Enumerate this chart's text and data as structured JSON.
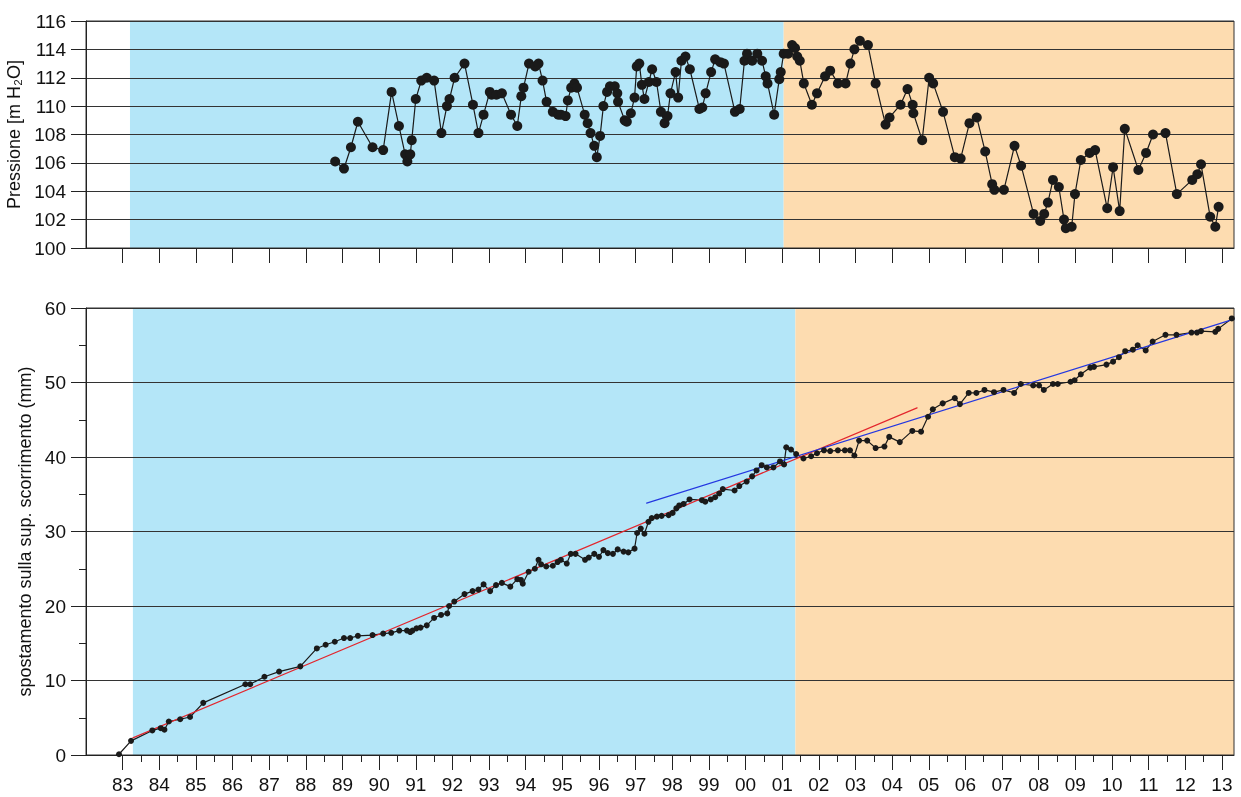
{
  "chart_data": [
    {
      "type": "line",
      "ylabel": "Pressione [m H₂O]",
      "x": [
        1988.8,
        1989.04,
        1989.23,
        1989.42,
        1989.82,
        1990.11,
        1990.34,
        1990.54,
        1990.71,
        1990.77,
        1990.85,
        1990.89,
        1991.0,
        1991.15,
        1991.3,
        1991.5,
        1991.7,
        1991.85,
        1991.92,
        1992.06,
        1992.33,
        1992.56,
        1992.71,
        1992.85,
        1993.02,
        1993.07,
        1993.2,
        1993.35,
        1993.6,
        1993.77,
        1993.88,
        1993.94,
        1994.09,
        1994.26,
        1994.35,
        1994.46,
        1994.57,
        1994.74,
        1994.89,
        1994.96,
        1995.09,
        1995.15,
        1995.24,
        1995.33,
        1995.4,
        1995.61,
        1995.69,
        1995.77,
        1995.87,
        1995.94,
        1996.03,
        1996.12,
        1996.22,
        1996.3,
        1996.43,
        1996.5,
        1996.52,
        1996.7,
        1996.76,
        1996.87,
        1996.97,
        1997.03,
        1997.1,
        1997.17,
        1997.24,
        1997.36,
        1997.45,
        1997.57,
        1997.69,
        1997.79,
        1997.87,
        1997.95,
        1998.09,
        1998.16,
        1998.25,
        1998.36,
        1998.48,
        1998.74,
        1998.82,
        1998.91,
        1999.06,
        1999.17,
        1999.31,
        1999.41,
        1999.71,
        1999.84,
        1999.97,
        2000.04,
        2000.18,
        2000.32,
        2000.45,
        2000.55,
        2000.6,
        2000.78,
        2000.92,
        2000.96,
        2001.04,
        2001.16,
        2001.27,
        2001.35,
        2001.41,
        2001.48,
        2001.59,
        2001.81,
        2001.95,
        2002.17,
        2002.31,
        2002.52,
        2002.73,
        2002.86,
        2002.97,
        2003.12,
        2003.34,
        2003.55,
        2003.82,
        2003.93,
        2004.23,
        2004.42,
        2004.56,
        2004.58,
        2004.82,
        2005.01,
        2005.12,
        2005.39,
        2005.71,
        2005.87,
        2006.11,
        2006.31,
        2006.54,
        2006.73,
        2006.79,
        2007.05,
        2007.34,
        2007.52,
        2007.86,
        2008.04,
        2008.15,
        2008.25,
        2008.39,
        2008.55,
        2008.69,
        2008.74,
        2008.9,
        2008.99,
        2009.15,
        2009.39,
        2009.54,
        2009.87,
        2010.03,
        2010.21,
        2010.35,
        2010.72,
        2010.93,
        2011.12,
        2011.46,
        2011.77,
        2012.19,
        2012.33,
        2012.43,
        2012.68,
        2012.82,
        2012.91
      ],
      "series": [
        {
          "color": "#1a1a1a",
          "values": [
            106.1,
            105.6,
            107.1,
            108.9,
            107.1,
            106.9,
            111.0,
            108.6,
            106.6,
            106.1,
            106.6,
            107.6,
            110.5,
            111.8,
            112.0,
            111.8,
            108.1,
            110.0,
            110.5,
            112.0,
            113.0,
            110.1,
            108.1,
            109.4,
            111.0,
            110.8,
            110.8,
            110.9,
            109.4,
            108.6,
            110.7,
            111.3,
            113.0,
            112.8,
            113.0,
            111.8,
            110.3,
            109.6,
            109.4,
            109.4,
            109.3,
            110.4,
            111.3,
            111.6,
            111.3,
            109.4,
            108.8,
            108.1,
            107.2,
            106.4,
            107.9,
            110.0,
            111.0,
            111.4,
            111.4,
            110.9,
            110.3,
            109.0,
            108.9,
            109.5,
            110.6,
            112.8,
            113.0,
            111.5,
            110.5,
            111.7,
            112.6,
            111.7,
            109.6,
            108.8,
            109.3,
            110.9,
            112.4,
            110.6,
            113.2,
            113.5,
            112.6,
            109.8,
            109.9,
            110.9,
            112.4,
            113.3,
            113.1,
            113.0,
            109.6,
            109.8,
            113.2,
            113.7,
            113.2,
            113.7,
            113.2,
            112.1,
            111.6,
            109.4,
            111.9,
            112.4,
            113.7,
            113.7,
            114.3,
            114.1,
            113.5,
            113.2,
            111.6,
            110.1,
            110.9,
            112.1,
            112.5,
            111.6,
            111.6,
            113.0,
            114.0,
            114.6,
            114.3,
            111.6,
            108.7,
            109.2,
            110.1,
            111.2,
            110.1,
            109.5,
            107.6,
            112.0,
            111.6,
            109.6,
            106.4,
            106.3,
            108.8,
            109.2,
            106.8,
            104.5,
            104.1,
            104.1,
            107.2,
            105.8,
            102.4,
            101.9,
            102.4,
            103.2,
            104.8,
            104.3,
            102.0,
            101.4,
            101.5,
            103.8,
            106.2,
            106.7,
            106.9,
            102.8,
            105.7,
            102.6,
            108.4,
            105.5,
            106.7,
            108.0,
            108.1,
            103.8,
            104.8,
            105.2,
            105.9,
            102.2,
            101.5,
            102.9
          ]
        }
      ],
      "xlim": [
        1982,
        2013.33
      ],
      "xticks": [
        {
          "value": 1983,
          "label": null
        },
        {
          "value": 1984,
          "label": null
        },
        {
          "value": 1985,
          "label": null
        },
        {
          "value": 1986,
          "label": null
        },
        {
          "value": 1987,
          "label": null
        },
        {
          "value": 1988,
          "label": null
        },
        {
          "value": 1989,
          "label": null
        },
        {
          "value": 1990,
          "label": null
        },
        {
          "value": 1991,
          "label": null
        },
        {
          "value": 1992,
          "label": null
        },
        {
          "value": 1993,
          "label": null
        },
        {
          "value": 1994,
          "label": null
        },
        {
          "value": 1995,
          "label": null
        },
        {
          "value": 1996,
          "label": null
        },
        {
          "value": 1997,
          "label": null
        },
        {
          "value": 1998,
          "label": null
        },
        {
          "value": 1999,
          "label": null
        },
        {
          "value": 2000,
          "label": null
        },
        {
          "value": 2001,
          "label": null
        },
        {
          "value": 2002,
          "label": null
        },
        {
          "value": 2003,
          "label": null
        },
        {
          "value": 2004,
          "label": null
        },
        {
          "value": 2005,
          "label": null
        },
        {
          "value": 2006,
          "label": null
        },
        {
          "value": 2007,
          "label": null
        },
        {
          "value": 2008,
          "label": null
        },
        {
          "value": 2009,
          "label": null
        },
        {
          "value": 2010,
          "label": null
        },
        {
          "value": 2011,
          "label": null
        },
        {
          "value": 2012,
          "label": null
        },
        {
          "value": 2013,
          "label": null
        }
      ],
      "ylim": [
        100,
        116
      ],
      "yticks": [
        100,
        102,
        104,
        106,
        108,
        110,
        112,
        114,
        116
      ],
      "tick_labels": "y",
      "grid": "y",
      "marker": "circle",
      "bands": [
        {
          "axis": "x",
          "from": 1983.2,
          "to": 2001.04,
          "color": "#b4e6f8"
        },
        {
          "axis": "x",
          "from": 2001.04,
          "to": 2013.33,
          "color": "#fddcb0"
        }
      ]
    },
    {
      "type": "line",
      "ylabel": "spostamento sulla sup. scorrimento (mm)",
      "series": [
        {
          "color": "#1a1a1a",
          "x": [
            1982.9,
            1983.23,
            1983.81,
            1984.04,
            1984.14,
            1984.26,
            1984.57,
            1984.84,
            1985.2,
            1986.35,
            1986.48,
            1986.87,
            1987.27,
            1987.85,
            1988.3,
            1988.54,
            1988.79,
            1989.04,
            1989.21,
            1989.42,
            1989.82,
            1990.11,
            1990.33,
            1990.55,
            1990.76,
            1990.85,
            1990.91,
            1991.02,
            1991.13,
            1991.3,
            1991.5,
            1991.69,
            1991.86,
            1991.91,
            1992.05,
            1992.33,
            1992.55,
            1992.71,
            1992.85,
            1993.03,
            1993.19,
            1993.35,
            1993.58,
            1993.77,
            1993.87,
            1993.92,
            1994.08,
            1994.25,
            1994.35,
            1994.42,
            1994.56,
            1994.74,
            1994.87,
            1994.96,
            1995.12,
            1995.23,
            1995.36,
            1995.62,
            1995.72,
            1995.87,
            1996.0,
            1996.12,
            1996.24,
            1996.38,
            1996.51,
            1996.67,
            1996.8,
            1996.97,
            1997.04,
            1997.14,
            1997.24,
            1997.35,
            1997.44,
            1997.58,
            1997.71,
            1997.9,
            1998.01,
            1998.11,
            1998.19,
            1998.31,
            1998.47,
            1998.81,
            1998.9,
            1999.05,
            1999.17,
            1999.28,
            1999.38,
            1999.7,
            1999.83,
            2000.03,
            2000.18,
            2000.3,
            2000.44,
            2000.58,
            2000.76,
            2000.94,
            2001.05,
            2001.11,
            2001.24,
            2001.38,
            2001.58,
            2001.79,
            2001.95,
            2002.14,
            2002.31,
            2002.52,
            2002.71,
            2002.85,
            2002.97,
            2003.1,
            2003.32,
            2003.55,
            2003.79,
            2003.92,
            2004.21,
            2004.55,
            2004.79,
            2004.98,
            2005.11,
            2005.38,
            2005.71,
            2005.85,
            2006.09,
            2006.3,
            2006.52,
            2006.78,
            2007.04,
            2007.33,
            2007.51,
            2007.85,
            2008.01,
            2008.14,
            2008.39,
            2008.52,
            2008.87,
            2008.98,
            2009.15,
            2009.41,
            2009.51,
            2009.85,
            2010.03,
            2010.19,
            2010.36,
            2010.57,
            2010.7,
            2010.92,
            2011.11,
            2011.46,
            2011.76,
            2012.17,
            2012.32,
            2012.43,
            2012.82,
            2012.9,
            2013.27
          ],
          "values": [
            0.1,
            1.9,
            3.3,
            3.6,
            3.4,
            4.5,
            4.8,
            5.1,
            7.0,
            9.5,
            9.5,
            10.5,
            11.2,
            11.9,
            14.3,
            14.8,
            15.2,
            15.7,
            15.7,
            16.0,
            16.1,
            16.3,
            16.4,
            16.7,
            16.7,
            16.5,
            16.7,
            17.0,
            17.1,
            17.4,
            18.4,
            18.8,
            19.0,
            20.0,
            20.6,
            21.6,
            22.0,
            22.2,
            22.9,
            22.0,
            22.8,
            23.1,
            22.6,
            23.6,
            23.5,
            23.0,
            24.6,
            25.0,
            26.2,
            25.6,
            25.3,
            25.4,
            25.9,
            26.2,
            25.7,
            27.0,
            27.0,
            26.2,
            26.5,
            27.0,
            26.6,
            27.5,
            27.1,
            27.0,
            27.6,
            27.3,
            27.2,
            27.7,
            29.8,
            30.4,
            29.7,
            31.3,
            31.8,
            32.0,
            32.1,
            32.2,
            32.5,
            33.1,
            33.5,
            33.7,
            34.3,
            34.2,
            34.0,
            34.3,
            34.6,
            35.1,
            35.7,
            35.5,
            36.1,
            36.7,
            37.4,
            38.2,
            38.9,
            38.6,
            38.6,
            39.4,
            39.0,
            41.3,
            41.0,
            40.4,
            39.8,
            40.1,
            40.5,
            40.9,
            40.8,
            40.9,
            40.9,
            40.9,
            40.2,
            42.2,
            42.2,
            41.2,
            41.4,
            42.7,
            42.0,
            43.5,
            43.4,
            45.4,
            46.4,
            47.2,
            47.9,
            47.1,
            48.6,
            48.6,
            49.0,
            48.7,
            49.0,
            48.6,
            49.8,
            49.6,
            49.6,
            49.0,
            49.8,
            49.8,
            50.1,
            50.3,
            51.1,
            52.0,
            52.1,
            52.4,
            52.8,
            53.4,
            54.2,
            54.4,
            55.0,
            54.3,
            55.5,
            56.4,
            56.4,
            56.7,
            56.7,
            56.9,
            56.8,
            57.2,
            58.6
          ]
        },
        {
          "color": "#e3262d",
          "marker": "none",
          "x": [
            1983.28,
            2004.68
          ],
          "values": [
            2.3,
            46.6
          ]
        },
        {
          "color": "#2437e0",
          "marker": "none",
          "x": [
            1997.3,
            2013.33
          ],
          "values": [
            33.8,
            58.5
          ]
        }
      ],
      "xlim": [
        1982,
        2013.33
      ],
      "xticks": [
        {
          "value": 1983,
          "label": "83"
        },
        {
          "value": 1983.5,
          "label": null
        },
        {
          "value": 1984,
          "label": "84"
        },
        {
          "value": 1984.5,
          "label": null
        },
        {
          "value": 1985,
          "label": "85"
        },
        {
          "value": 1985.5,
          "label": null
        },
        {
          "value": 1986,
          "label": "86"
        },
        {
          "value": 1986.5,
          "label": null
        },
        {
          "value": 1987,
          "label": "87"
        },
        {
          "value": 1987.5,
          "label": null
        },
        {
          "value": 1988,
          "label": "88"
        },
        {
          "value": 1988.5,
          "label": null
        },
        {
          "value": 1989,
          "label": "89"
        },
        {
          "value": 1989.5,
          "label": null
        },
        {
          "value": 1990,
          "label": "90"
        },
        {
          "value": 1990.5,
          "label": null
        },
        {
          "value": 1991,
          "label": "91"
        },
        {
          "value": 1991.5,
          "label": null
        },
        {
          "value": 1992,
          "label": "92"
        },
        {
          "value": 1992.5,
          "label": null
        },
        {
          "value": 1993,
          "label": "93"
        },
        {
          "value": 1993.5,
          "label": null
        },
        {
          "value": 1994,
          "label": "94"
        },
        {
          "value": 1994.5,
          "label": null
        },
        {
          "value": 1995,
          "label": "95"
        },
        {
          "value": 1995.5,
          "label": null
        },
        {
          "value": 1996,
          "label": "96"
        },
        {
          "value": 1996.5,
          "label": null
        },
        {
          "value": 1997,
          "label": "97"
        },
        {
          "value": 1997.5,
          "label": null
        },
        {
          "value": 1998,
          "label": "98"
        },
        {
          "value": 1998.5,
          "label": null
        },
        {
          "value": 1999,
          "label": "99"
        },
        {
          "value": 1999.5,
          "label": null
        },
        {
          "value": 2000,
          "label": "00"
        },
        {
          "value": 2000.5,
          "label": null
        },
        {
          "value": 2001,
          "label": "01"
        },
        {
          "value": 2001.5,
          "label": null
        },
        {
          "value": 2002,
          "label": "02"
        },
        {
          "value": 2002.5,
          "label": null
        },
        {
          "value": 2003,
          "label": "03"
        },
        {
          "value": 2003.5,
          "label": null
        },
        {
          "value": 2004,
          "label": "04"
        },
        {
          "value": 2004.5,
          "label": null
        },
        {
          "value": 2005,
          "label": "05"
        },
        {
          "value": 2005.5,
          "label": null
        },
        {
          "value": 2006,
          "label": "06"
        },
        {
          "value": 2006.5,
          "label": null
        },
        {
          "value": 2007,
          "label": "07"
        },
        {
          "value": 2007.5,
          "label": null
        },
        {
          "value": 2008,
          "label": "08"
        },
        {
          "value": 2008.5,
          "label": null
        },
        {
          "value": 2009,
          "label": "09"
        },
        {
          "value": 2009.5,
          "label": null
        },
        {
          "value": 2010,
          "label": "10"
        },
        {
          "value": 2010.5,
          "label": null
        },
        {
          "value": 2011,
          "label": "11"
        },
        {
          "value": 2011.5,
          "label": null
        },
        {
          "value": 2012,
          "label": "12"
        },
        {
          "value": 2012.5,
          "label": null
        },
        {
          "value": 2013,
          "label": "13"
        }
      ],
      "ylim": [
        0,
        60
      ],
      "yticks": [
        0,
        {
          "value": 5,
          "label": null
        },
        10,
        {
          "value": 15,
          "label": null
        },
        20,
        {
          "value": 25,
          "label": null
        },
        30,
        {
          "value": 35,
          "label": null
        },
        40,
        {
          "value": 45,
          "label": null
        },
        50,
        {
          "value": 55,
          "label": null
        },
        60
      ],
      "grid": "y",
      "marker": "circle",
      "bands": [
        {
          "axis": "x",
          "from": 1983.28,
          "to": 2001.36,
          "color": "#b4e6f8"
        },
        {
          "axis": "x",
          "from": 2001.36,
          "to": 2013.33,
          "color": "#fddcb0"
        }
      ]
    }
  ]
}
